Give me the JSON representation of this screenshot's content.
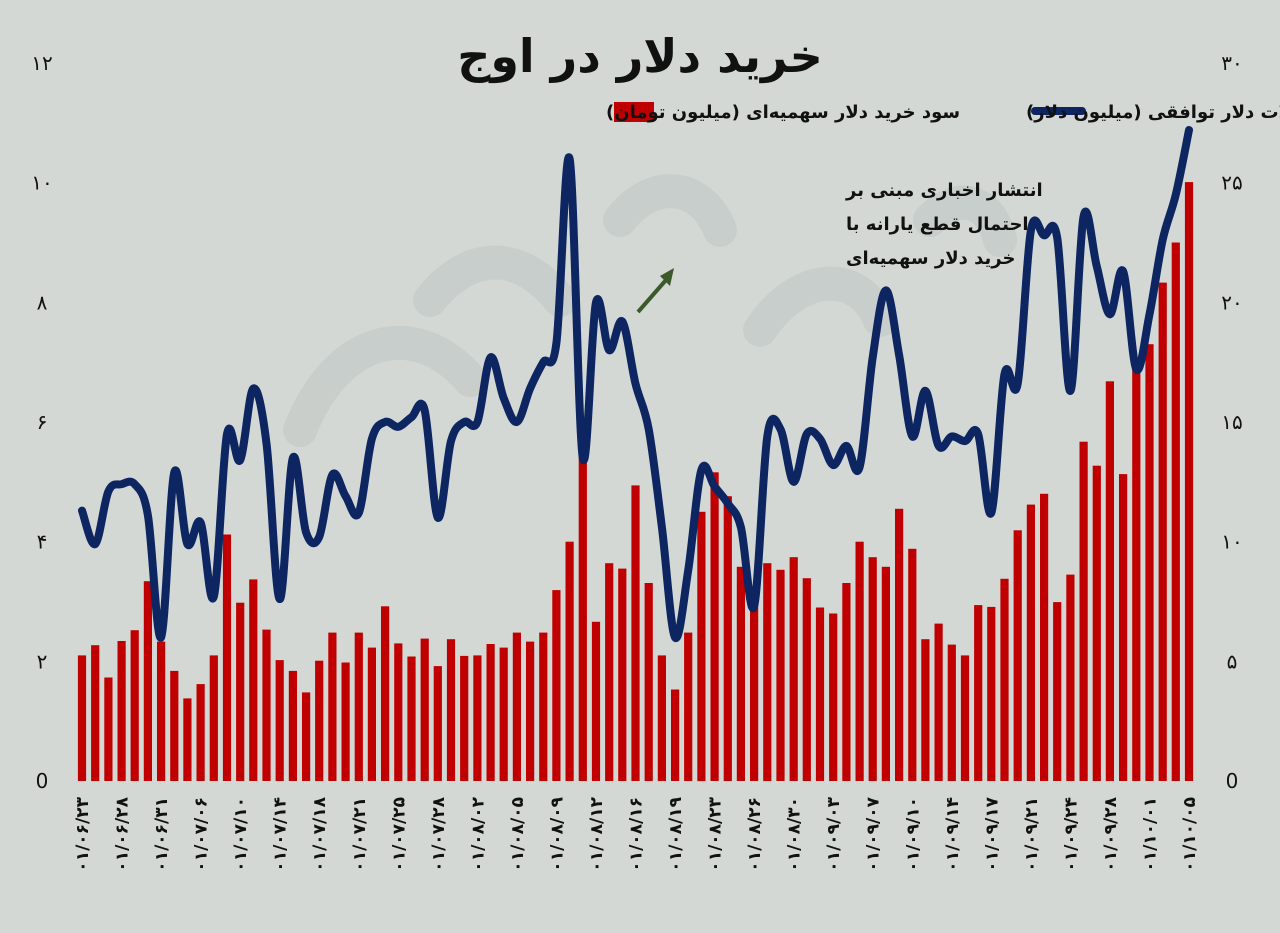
{
  "chart_data": {
    "type": "bar",
    "title": "خرید دلار در اوج",
    "legend": [
      {
        "label": "حجم معاملات دلار توافقی (میلیون دلار)",
        "color": "#0d2561",
        "kind": "line"
      },
      {
        "label": "سود خرید دلار سهمیه‌ای (میلیون تومان)",
        "color": "#c00000",
        "kind": "bar"
      }
    ],
    "legend_position": "top",
    "annotation": [
      "انتشار اخباری مبنی بر",
      "احتمال قطع یارانه با",
      "خرید دلار سهمیه‌ای"
    ],
    "left_axis": {
      "ticks": [
        "0",
        "۲",
        "۴",
        "۶",
        "۸",
        "۱۰",
        "۱۲"
      ],
      "range": [
        0,
        12
      ]
    },
    "right_axis": {
      "ticks": [
        "0",
        "۵",
        "۱۰",
        "۱۵",
        "۲۰",
        "۲۵",
        "۳۰"
      ],
      "range": [
        0,
        30
      ]
    },
    "x_tick_labels": [
      "۰۱/۰۶/۲۳",
      "۰۱/۰۶/۲۸",
      "۰۱/۰۶/۳۱",
      "۰۱/۰۷/۰۶",
      "۰۱/۰۷/۱۰",
      "۰۱/۰۷/۱۴",
      "۰۱/۰۷/۱۸",
      "۰۱/۰۷/۲۱",
      "۰۱/۰۷/۲۵",
      "۰۱/۰۷/۲۸",
      "۰۱/۰۸/۰۲",
      "۰۱/۰۸/۰۵",
      "۰۱/۰۸/۰۹",
      "۰۱/۰۸/۱۲",
      "۰۱/۰۸/۱۶",
      "۰۱/۰۸/۱۹",
      "۰۱/۰۸/۲۳",
      "۰۱/۰۸/۲۶",
      "۰۱/۰۸/۳۰",
      "۰۱/۰۹/۰۳",
      "۰۱/۰۹/۰۷",
      "۰۱/۰۹/۱۰",
      "۰۱/۰۹/۱۴",
      "۰۱/۰۹/۱۷",
      "۰۱/۰۹/۲۱",
      "۰۱/۰۹/۲۴",
      "۰۱/۰۹/۲۸",
      "۰۱/۱۰/۰۱",
      "۰۱/۱۰/۰۵"
    ],
    "series": [
      {
        "axis": "left",
        "values": [
          2.1,
          2.27,
          1.73,
          2.34,
          2.52,
          3.34,
          2.33,
          1.84,
          1.38,
          1.62,
          2.1,
          4.12,
          2.98,
          3.37,
          2.53,
          2.02,
          1.84,
          1.48,
          2.01,
          2.48,
          1.98,
          2.48,
          2.23,
          2.92,
          2.3,
          2.08,
          2.38,
          1.92,
          2.37,
          2.09,
          2.1,
          2.29,
          2.23,
          2.48,
          2.33,
          2.48,
          3.19,
          4.0,
          5.9,
          2.66,
          3.64,
          3.55,
          4.94,
          3.31,
          2.1,
          1.53,
          2.48,
          4.5,
          5.16,
          4.76,
          3.58,
          3.03,
          3.64,
          3.53,
          3.74,
          3.39,
          2.9,
          2.8,
          3.31,
          4.0,
          3.74,
          3.58,
          4.55,
          3.88,
          2.37,
          2.63,
          2.28,
          2.1,
          2.94,
          2.91,
          3.38,
          4.19,
          4.62,
          4.8,
          2.99,
          3.45,
          5.67,
          5.27,
          6.68,
          5.13,
          7.05,
          7.3,
          8.33,
          9.0,
          10.01
        ]
      },
      {
        "axis": "right",
        "values": [
          11.3,
          9.9,
          12.1,
          12.4,
          12.4,
          11.1,
          6.0,
          12.9,
          9.9,
          10.8,
          7.7,
          14.5,
          13.4,
          16.4,
          14.1,
          7.6,
          13.5,
          10.4,
          10.2,
          12.8,
          11.9,
          11.2,
          14.3,
          15.0,
          14.8,
          15.2,
          15.5,
          11.0,
          14.2,
          15.0,
          15.0,
          17.7,
          16.0,
          15.0,
          16.4,
          17.5,
          18.3,
          26.0,
          13.5,
          20.0,
          18.0,
          19.2,
          16.6,
          14.7,
          10.6,
          6.0,
          8.8,
          13.0,
          12.3,
          11.6,
          10.6,
          7.3,
          14.4,
          14.7,
          12.5,
          14.5,
          14.3,
          13.2,
          14.0,
          13.1,
          17.7,
          20.5,
          17.8,
          14.4,
          16.3,
          14.0,
          14.4,
          14.2,
          14.5,
          11.2,
          17.0,
          16.6,
          23.0,
          22.8,
          22.7,
          16.3,
          23.6,
          21.5,
          19.5,
          21.3,
          17.2,
          19.5,
          22.6,
          24.5,
          27.2
        ]
      }
    ]
  }
}
